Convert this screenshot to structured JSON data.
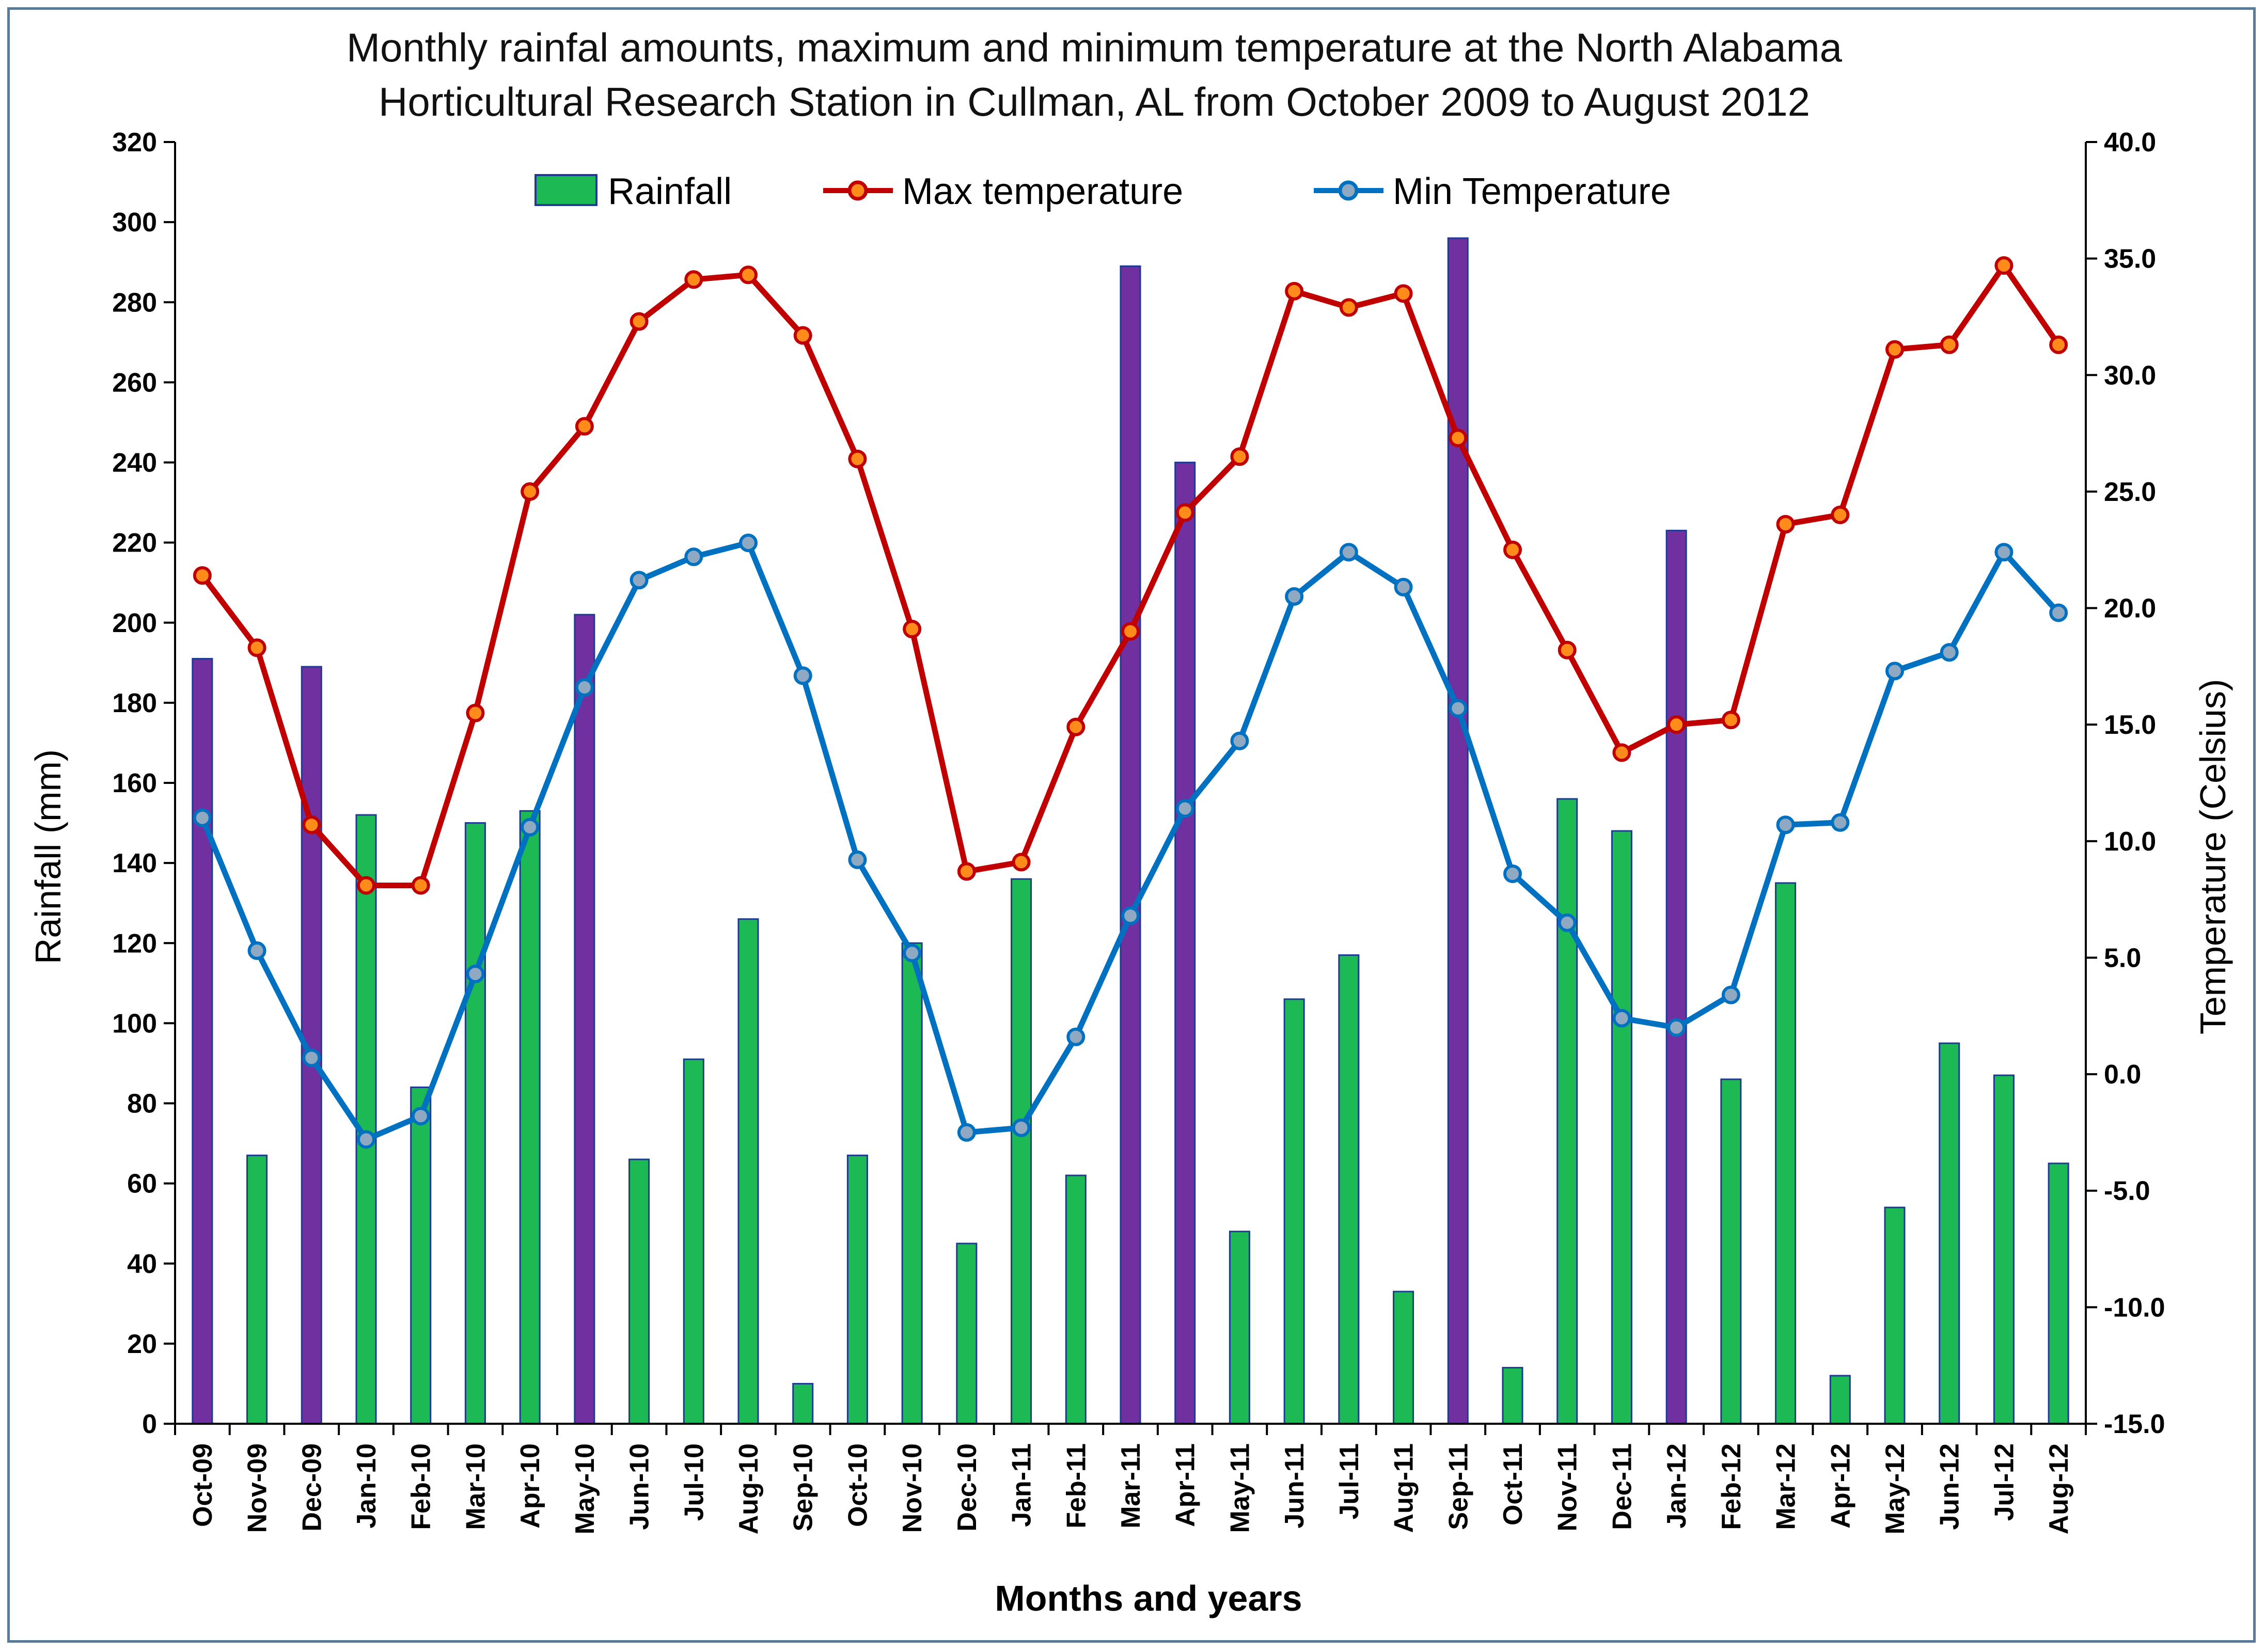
{
  "chart_data": {
    "type": "bar+line",
    "title_lines": [
      "Monthly rainfal amounts, maximum and minimum temperature at the North Alabama",
      "Horticultural Research Station in Cullman, AL from October 2009 to August 2012"
    ],
    "xlabel": "Months and years",
    "ylabel_left": "Rainfall (mm)",
    "ylabel_right": "Temperature  (Celsius)",
    "ylim_left": [
      0,
      320
    ],
    "ylim_right": [
      -15,
      40
    ],
    "yticks_left": [
      "0",
      "20",
      "40",
      "60",
      "80",
      "100",
      "120",
      "140",
      "160",
      "180",
      "200",
      "220",
      "240",
      "260",
      "280",
      "300",
      "320"
    ],
    "yticks_right": [
      "-15.0",
      "-10.0",
      "-5.0",
      "0.0",
      "5.0",
      "10.0",
      "15.0",
      "20.0",
      "25.0",
      "30.0",
      "35.0",
      "40.0"
    ],
    "categories": [
      "Oct-09",
      "Nov-09",
      "Dec-09",
      "Jan-10",
      "Feb-10",
      "Mar-10",
      "Apr-10",
      "May-10",
      "Jun-10",
      "Jul-10",
      "Aug-10",
      "Sep-10",
      "Oct-10",
      "Nov-10",
      "Dec-10",
      "Jan-11",
      "Feb-11",
      "Mar-11",
      "Apr-11",
      "May-11",
      "Jun-11",
      "Jul-11",
      "Aug-11",
      "Sep-11",
      "Oct-11",
      "Nov-11",
      "Dec-11",
      "Jan-12",
      "Feb-12",
      "Mar-12",
      "Apr-12",
      "May-12",
      "Jun-12",
      "Jul-12",
      "Aug-12"
    ],
    "series": [
      {
        "name": "Rainfall",
        "type": "bar",
        "axis": "left",
        "values": [
          191,
          67,
          189,
          152,
          84,
          150,
          153,
          202,
          66,
          91,
          126,
          10,
          67,
          120,
          45,
          136,
          62,
          289,
          240,
          48,
          106,
          117,
          33,
          296,
          14,
          156,
          148,
          223,
          86,
          135,
          12,
          54,
          95,
          87,
          65
        ]
      },
      {
        "name": "Max temperature",
        "type": "line",
        "axis": "right",
        "values": [
          21.4,
          18.3,
          10.7,
          8.1,
          8.1,
          15.5,
          25.0,
          27.8,
          32.3,
          34.1,
          34.3,
          31.7,
          26.4,
          19.1,
          8.7,
          9.1,
          14.9,
          19.0,
          24.1,
          26.5,
          33.6,
          32.9,
          33.5,
          27.3,
          22.5,
          18.2,
          13.8,
          15.0,
          15.2,
          23.6,
          24.0,
          31.1,
          31.3,
          34.7,
          31.3
        ]
      },
      {
        "name": "Min Temperature",
        "type": "line",
        "axis": "right",
        "values": [
          11.0,
          5.3,
          0.7,
          -2.8,
          -1.8,
          4.3,
          10.6,
          16.6,
          21.2,
          22.2,
          22.8,
          17.1,
          9.2,
          5.2,
          -2.5,
          -2.3,
          1.6,
          6.8,
          11.4,
          14.3,
          20.5,
          22.4,
          20.9,
          15.7,
          8.6,
          6.5,
          2.4,
          2.0,
          3.4,
          10.7,
          10.8,
          17.3,
          18.1,
          22.4,
          19.8
        ]
      }
    ],
    "legend_position": "top-center",
    "colors": {
      "rainfall_bar": "#1db954",
      "rainfall_bar_tall": "#7030a0",
      "rainfall_edge": "#1f3a93",
      "max_line": "#c00000",
      "max_marker_fill": "#ff8c1a",
      "min_line": "#0070c0",
      "min_marker_fill": "#8ea9c1",
      "frame": "#5b7a99"
    },
    "highlight_threshold": 185
  }
}
